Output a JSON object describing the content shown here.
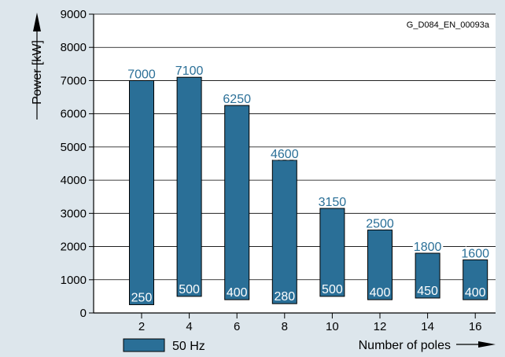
{
  "chart_data": {
    "type": "bar",
    "categories": [
      "2",
      "4",
      "6",
      "8",
      "10",
      "12",
      "14",
      "16"
    ],
    "series": [
      {
        "name": "50 Hz",
        "low": [
          250,
          500,
          400,
          280,
          500,
          400,
          450,
          400
        ],
        "high": [
          7000,
          7100,
          6250,
          4600,
          3150,
          2500,
          1800,
          1600
        ]
      }
    ],
    "top_labels": [
      "7000",
      "7100",
      "6250",
      "4600",
      "3150",
      "2500",
      "1800",
      "1600"
    ],
    "bottom_labels": [
      "250",
      "500",
      "400",
      "280",
      "500",
      "400",
      "450",
      "400"
    ],
    "ylabel": "Power [kW]",
    "xlabel": "Number of poles",
    "ylim": [
      0,
      9000
    ],
    "yticks": [
      "0",
      "1000",
      "2000",
      "3000",
      "4000",
      "5000",
      "6000",
      "7000",
      "8000",
      "9000"
    ],
    "grid": true,
    "legend": "bottom-left",
    "doc_id": "G_D084_EN_00093a",
    "colors": {
      "bar": "#2a6f97",
      "top_label": "#2a6f97",
      "bottom_label": "#ffffff",
      "background": "#dde6ec",
      "plot_bg": "#ffffff"
    }
  }
}
